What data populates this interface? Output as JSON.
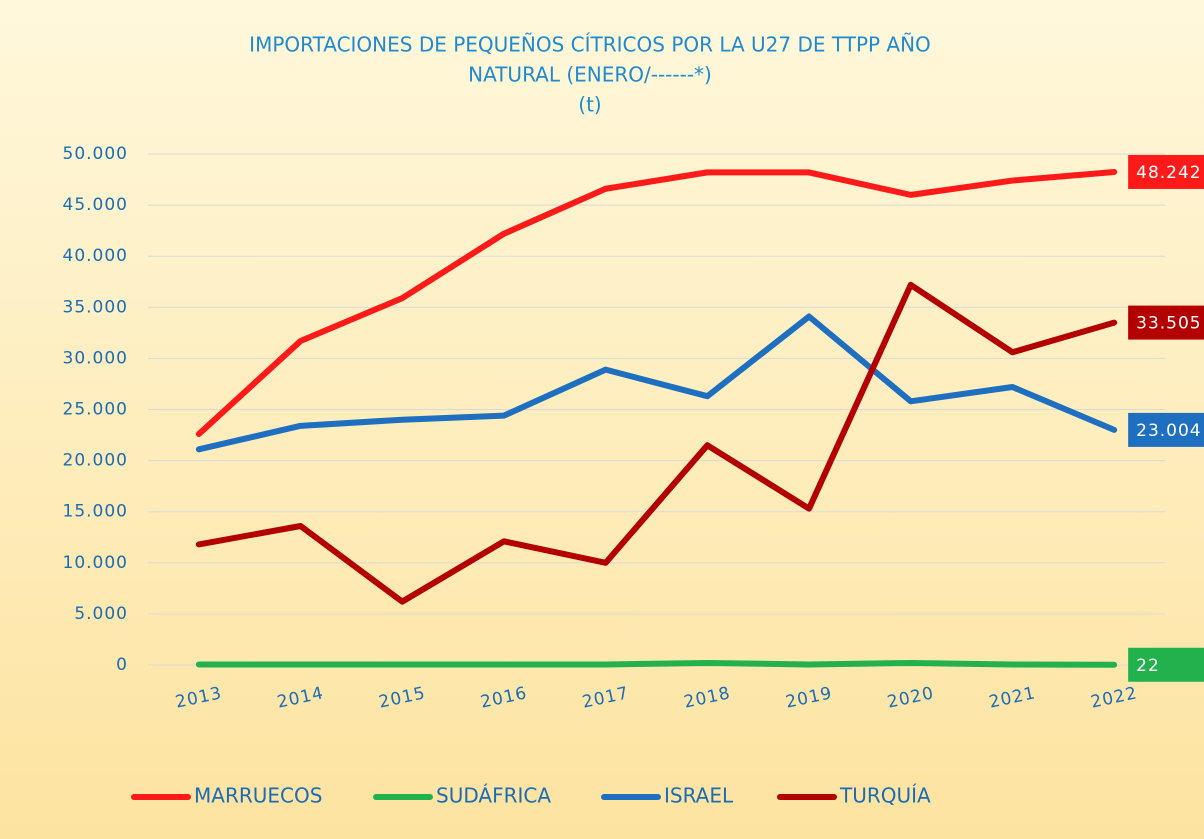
{
  "chart_data": {
    "type": "line",
    "title": [
      "IMPORTACIONES DE PEQUEÑOS CÍTRICOS POR LA U27 DE TTPP AÑO",
      "NATURAL (ENERO/------*)"
    ],
    "subtitle": "(t)",
    "categories": [
      "2013",
      "2014",
      "2015",
      "2016",
      "2017",
      "2018",
      "2019",
      "2020",
      "2021",
      "2022"
    ],
    "series": [
      {
        "name": "MARRUECOS",
        "color": "#ff1a1a",
        "values": [
          22600,
          31700,
          35900,
          42200,
          46600,
          48200,
          48200,
          46000,
          47400,
          48242
        ],
        "value_labels": [
          null,
          null,
          null,
          null,
          null,
          null,
          null,
          null,
          null,
          "48.242"
        ]
      },
      {
        "name": "SUDÁFRICA",
        "color": "#22b14c",
        "values": [
          50,
          50,
          50,
          50,
          50,
          200,
          50,
          200,
          50,
          22
        ],
        "value_labels": [
          null,
          null,
          null,
          null,
          null,
          null,
          null,
          null,
          null,
          "22"
        ]
      },
      {
        "name": "ISRAEL",
        "color": "#1f6fc0",
        "values": [
          21100,
          23400,
          24000,
          24400,
          28900,
          26300,
          34100,
          25800,
          27200,
          23004
        ],
        "value_labels": [
          null,
          null,
          null,
          null,
          null,
          null,
          null,
          null,
          null,
          "23.004"
        ]
      },
      {
        "name": "TURQUÍA",
        "color": "#b30000",
        "values": [
          11800,
          13600,
          6200,
          12100,
          10000,
          21500,
          15300,
          37200,
          30600,
          33505
        ],
        "value_labels": [
          null,
          null,
          null,
          null,
          null,
          null,
          null,
          null,
          null,
          "33.505"
        ]
      }
    ],
    "ylim": [
      0,
      50000
    ],
    "yticks": [
      0,
      {
        "value": 5000,
        "label": "5.000"
      },
      {
        "value": 10000,
        "label": "10.000"
      },
      {
        "value": 15000,
        "label": "15.000"
      },
      {
        "value": 20000,
        "label": "20.000"
      },
      {
        "value": 25000,
        "label": "25.000"
      },
      {
        "value": 30000,
        "label": "30.000"
      },
      {
        "value": 35000,
        "label": "35.000"
      },
      {
        "value": 40000,
        "label": "40.000"
      },
      {
        "value": 45000,
        "label": "45.000"
      },
      {
        "value": 50000,
        "label": "50.000"
      }
    ],
    "grid": true
  }
}
